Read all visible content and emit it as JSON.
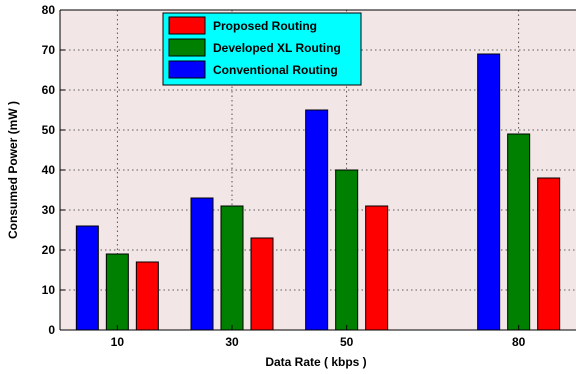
{
  "chart_data": {
    "type": "bar",
    "title": "",
    "xlabel": "Data Rate ( kbps )",
    "ylabel": "Consumed Power (mW )",
    "ylim": [
      0,
      80
    ],
    "yticks": [
      0,
      10,
      20,
      30,
      40,
      50,
      60,
      70,
      80
    ],
    "x": [
      10,
      30,
      50,
      80
    ],
    "xlim": [
      0,
      90
    ],
    "categories": [
      "10",
      "30",
      "50",
      "80"
    ],
    "grid": true,
    "legend_position": "top-center",
    "series": [
      {
        "name": "Conventional Routing",
        "color": "#0000ff",
        "values": [
          26,
          33,
          55,
          69
        ]
      },
      {
        "name": "Developed XL Routing",
        "color": "#008000",
        "values": [
          19,
          31,
          40,
          49
        ]
      },
      {
        "name": "Proposed Routing",
        "color": "#ff0000",
        "values": [
          17,
          23,
          31,
          38
        ]
      }
    ],
    "legend_order": [
      "Proposed Routing",
      "Developed XL Routing",
      "Conventional Routing"
    ],
    "colors": {
      "plot_background": "#f3e6e6",
      "legend_background": "#00ffff"
    }
  }
}
